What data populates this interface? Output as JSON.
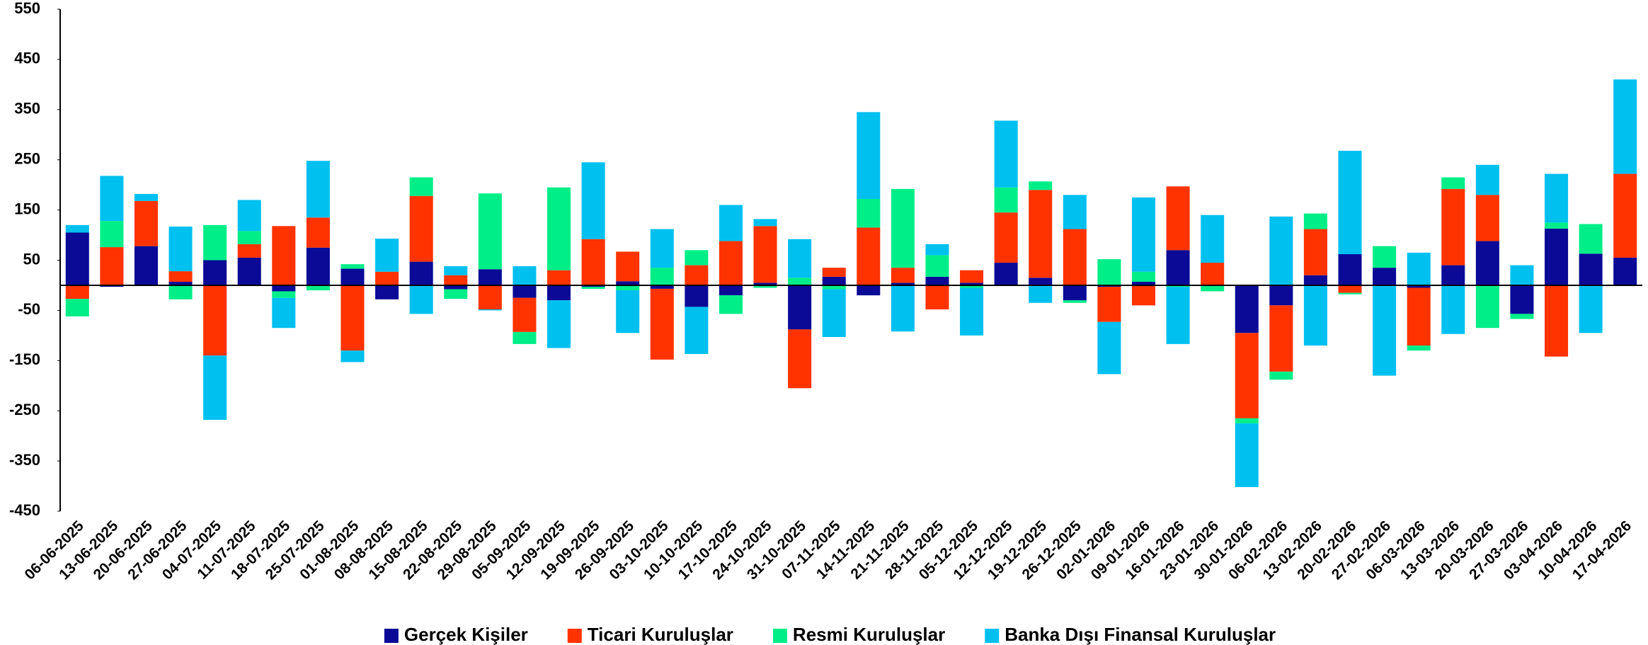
{
  "chart_data": {
    "type": "stacked_bar",
    "categories": [
      "06-06-2025",
      "13-06-2025",
      "20-06-2025",
      "27-06-2025",
      "04-07-2025",
      "11-07-2025",
      "18-07-2025",
      "25-07-2025",
      "01-08-2025",
      "08-08-2025",
      "15-08-2025",
      "22-08-2025",
      "29-08-2025",
      "05-09-2025",
      "12-09-2025",
      "19-09-2025",
      "26-09-2025",
      "03-10-2025",
      "10-10-2025",
      "17-10-2025",
      "24-10-2025",
      "31-10-2025",
      "07-11-2025",
      "14-11-2025",
      "21-11-2025",
      "28-11-2025",
      "05-12-2025",
      "12-12-2025",
      "19-12-2025",
      "26-12-2025",
      "02-01-2026",
      "09-01-2026",
      "16-01-2026",
      "23-01-2026",
      "30-01-2026",
      "06-02-2026",
      "13-02-2026",
      "20-02-2026",
      "27-02-2026",
      "06-03-2026",
      "13-03-2026",
      "20-03-2026",
      "27-03-2026",
      "03-04-2026",
      "10-04-2026",
      "17-04-2026"
    ],
    "series": [
      {
        "name": "Gerçek Kişiler",
        "color": "#0a0a96",
        "values": [
          105,
          -3,
          78,
          7,
          50,
          55,
          -12,
          75,
          33,
          -28,
          47,
          -8,
          32,
          -25,
          -30,
          -3,
          8,
          -7,
          -43,
          -20,
          5,
          -88,
          17,
          -20,
          5,
          17,
          5,
          45,
          15,
          -30,
          -3,
          7,
          70,
          0,
          -95,
          -40,
          20,
          62,
          35,
          -5,
          40,
          88,
          -57,
          113,
          63,
          55
        ]
      },
      {
        "name": "Ticari Kuruluşlar",
        "color": "#ff3300",
        "values": [
          -27,
          76,
          90,
          21,
          -140,
          27,
          118,
          60,
          -130,
          27,
          131,
          20,
          -48,
          -68,
          30,
          92,
          59,
          -141,
          40,
          88,
          113,
          -117,
          18,
          115,
          30,
          -48,
          25,
          100,
          175,
          112,
          -70,
          -40,
          127,
          45,
          -170,
          -132,
          92,
          -15,
          0,
          -115,
          152,
          92,
          0,
          -142,
          0,
          167
        ]
      },
      {
        "name": "Resmi Kuruluşlar",
        "color": "#00ee88",
        "values": [
          -35,
          52,
          0,
          -28,
          70,
          26,
          -13,
          -10,
          9,
          0,
          37,
          -19,
          151,
          -24,
          165,
          -4,
          -10,
          35,
          30,
          -37,
          -5,
          15,
          -8,
          57,
          157,
          43,
          -5,
          50,
          17,
          -5,
          52,
          20,
          -3,
          -12,
          -10,
          -16,
          31,
          -3,
          43,
          -10,
          23,
          -85,
          -10,
          12,
          59,
          0
        ]
      },
      {
        "name": "Banka Dışı Finansal Kuruluşlar",
        "color": "#00c0f0",
        "values": [
          15,
          90,
          14,
          89,
          -128,
          62,
          -60,
          113,
          -23,
          66,
          -57,
          18,
          -2,
          38,
          -95,
          153,
          -85,
          77,
          -94,
          72,
          14,
          77,
          -95,
          173,
          -92,
          22,
          -95,
          133,
          -35,
          68,
          -104,
          148,
          -114,
          95,
          -127,
          137,
          -120,
          206,
          -180,
          65,
          -97,
          60,
          40,
          97,
          -95,
          188
        ]
      }
    ],
    "ylim": [
      -450,
      550
    ],
    "yticks": [
      -450,
      -350,
      -250,
      -150,
      -50,
      50,
      150,
      250,
      350,
      450,
      550
    ],
    "legend": "bottom"
  }
}
